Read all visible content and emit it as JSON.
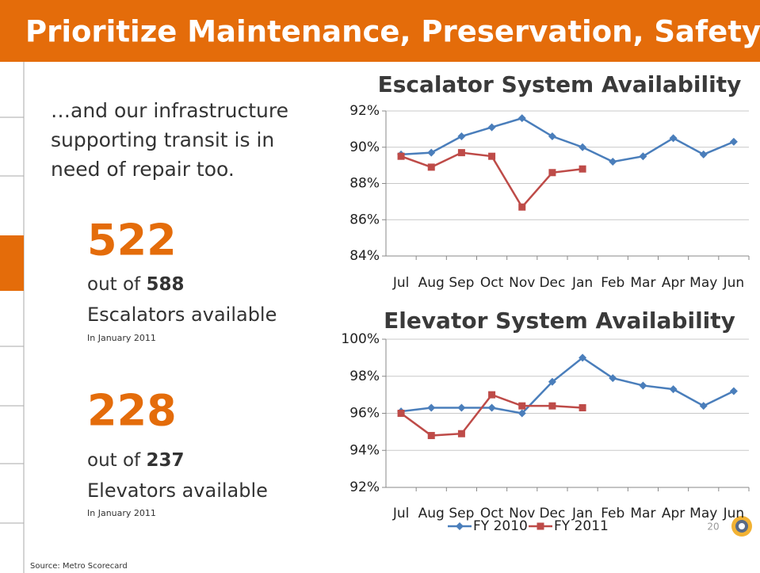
{
  "title": "Prioritize Maintenance, Preservation, Safety",
  "intro": [
    "…and our infrastructure",
    "supporting transit is in",
    "need of repair too."
  ],
  "stats": [
    {
      "number": 522,
      "prefix": "out of",
      "total": 588,
      "label": "Escalators available",
      "note": "In January 2011"
    },
    {
      "number": 228,
      "prefix": "out of",
      "total": 237,
      "label": "Elevators available",
      "note": "In January 2011"
    }
  ],
  "source": "Source: Metro Scorecard",
  "page_number": 20,
  "chart_data": [
    {
      "type": "line",
      "title": "Escalator System Availability",
      "categories": [
        "Jul",
        "Aug",
        "Sep",
        "Oct",
        "Nov",
        "Dec",
        "Jan",
        "Feb",
        "Mar",
        "Apr",
        "May",
        "Jun"
      ],
      "series": [
        {
          "name": "FY 2010",
          "color": "#4a7ebb",
          "marker": "diamond",
          "values": [
            89.6,
            89.7,
            90.6,
            91.1,
            91.6,
            90.6,
            90.0,
            89.2,
            89.5,
            90.5,
            89.6,
            90.3
          ]
        },
        {
          "name": "FY 2011",
          "color": "#be4b48",
          "marker": "square",
          "values": [
            89.5,
            88.9,
            89.7,
            89.5,
            86.7,
            88.6,
            88.8,
            null,
            null,
            null,
            null,
            null
          ]
        }
      ],
      "ylim": [
        84,
        92
      ],
      "yticks": [
        {
          "value": 84,
          "label": "84%"
        },
        {
          "value": 86,
          "label": "86%"
        },
        {
          "value": 88,
          "label": "88%"
        },
        {
          "value": 90,
          "label": "90%"
        },
        {
          "value": 92,
          "label": "92%"
        }
      ],
      "grid": true
    },
    {
      "type": "line",
      "title": "Elevator System Availability",
      "categories": [
        "Jul",
        "Aug",
        "Sep",
        "Oct",
        "Nov",
        "Dec",
        "Jan",
        "Feb",
        "Mar",
        "Apr",
        "May",
        "Jun"
      ],
      "series": [
        {
          "name": "FY 2010",
          "color": "#4a7ebb",
          "marker": "diamond",
          "values": [
            96.1,
            96.3,
            96.3,
            96.3,
            96.0,
            97.7,
            99.0,
            97.9,
            97.5,
            97.3,
            96.4,
            97.2
          ]
        },
        {
          "name": "FY 2011",
          "color": "#be4b48",
          "marker": "square",
          "values": [
            96.0,
            94.8,
            94.9,
            97.0,
            96.4,
            96.4,
            96.3,
            null,
            null,
            null,
            null,
            null
          ]
        }
      ],
      "ylim": [
        92,
        100
      ],
      "yticks": [
        {
          "value": 92,
          "label": "92%"
        },
        {
          "value": 94,
          "label": "94%"
        },
        {
          "value": 96,
          "label": "96%"
        },
        {
          "value": 98,
          "label": "98%"
        },
        {
          "value": 100,
          "label": "100%"
        }
      ],
      "grid": true,
      "legend": "bottom"
    }
  ]
}
